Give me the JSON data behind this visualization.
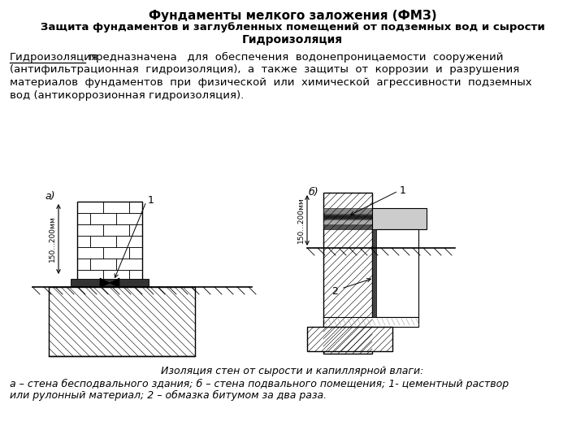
{
  "title_line1": "Фундаменты мелкого заложения (ФМЗ)",
  "title_line2": "Защита фундаментов и заглубленных помещений от подземных вод и сырости",
  "title_line3": "Гидроизоляция",
  "body_underline_word": "Гидроизоляция",
  "body_rest_line1": " предназначена   для  обеспечения  водонепроницаемости  сооружений",
  "body_line2": "(антифильтрационная  гидроизоляция),  а  также  защиты  от  коррозии  и  разрушения",
  "body_line3": "материалов  фундаментов  при  физической  или  химической  агрессивности  подземных",
  "body_line4": "вод (антикоррозионная гидроизоляция).",
  "label_a": "а)",
  "label_b": "б)",
  "dim_label": "150...200мм",
  "label_1": "1",
  "label_2": "2",
  "caption_italic": "Изоляция стен от сырости и капиллярной влаги:",
  "caption_line1": "а – стена бесподвального здания; б – стена подвального помещения; 1- цементный раствор",
  "caption_line2": "или рулонный материал; 2 – обмазка битумом за два раза.",
  "bg_color": "#ffffff",
  "text_color": "#000000",
  "fig_width": 7.2,
  "fig_height": 5.4,
  "dpi": 100
}
